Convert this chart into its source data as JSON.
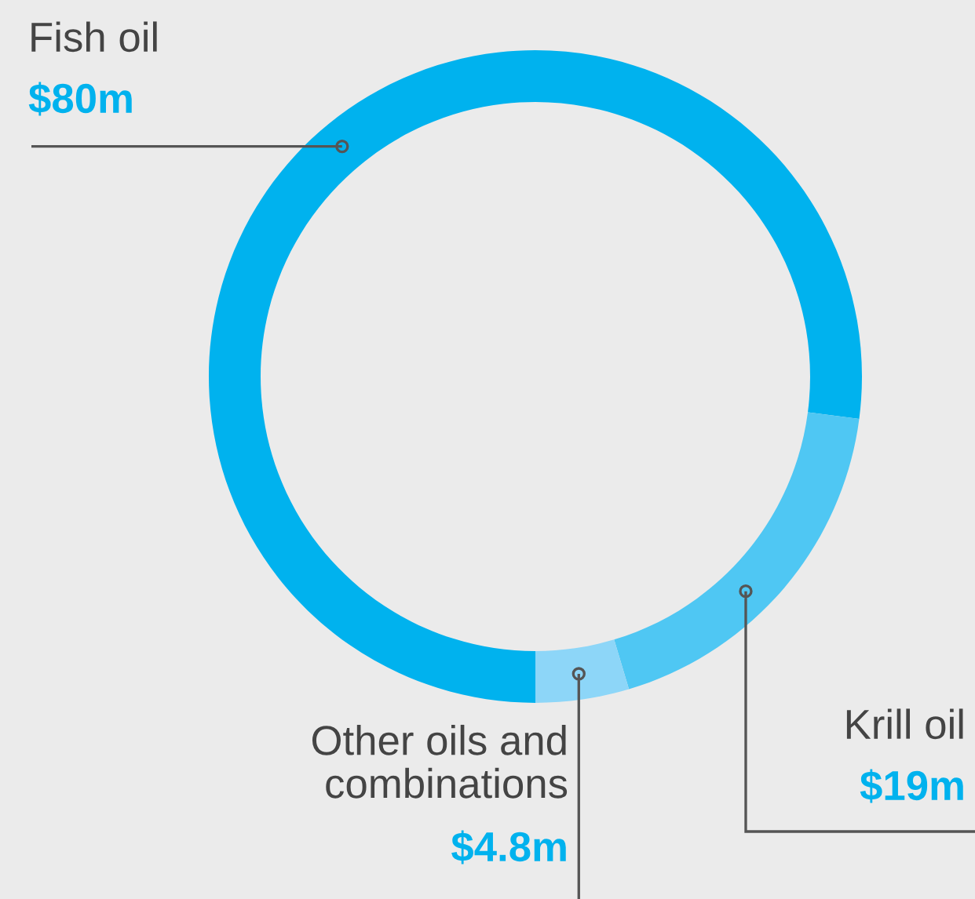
{
  "chart_data": {
    "type": "donut",
    "categories": [
      "Fish oil",
      "Krill oil",
      "Other oils and\ncombinations"
    ],
    "values": [
      80,
      19,
      4.8
    ],
    "value_labels": [
      "$80m",
      "$19m",
      "$4.8m"
    ],
    "colors": [
      "#00b2ee",
      "#4fc7f3",
      "#8dd6f8"
    ],
    "legend": false
  }
}
